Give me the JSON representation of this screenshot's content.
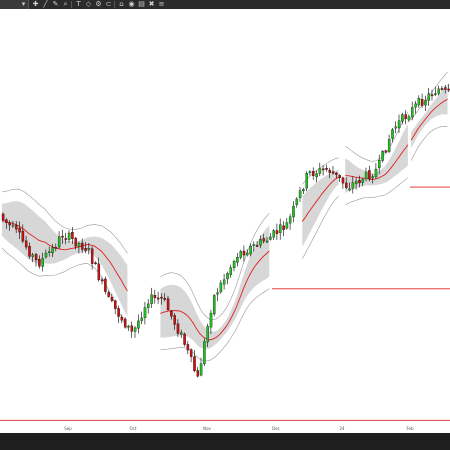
{
  "toolbar": {
    "dropdown_icon": "chevron-down-icon",
    "icons": [
      "crosshair-icon",
      "line-tool-icon",
      "pencil-icon",
      "zoom-icon",
      "text-icon",
      "shapes-icon",
      "settings-icon",
      "magnet-icon",
      "lock-icon",
      "eye-icon",
      "layers-icon",
      "trash-icon",
      "properties-icon"
    ]
  },
  "chart_data": {
    "type": "candlestick",
    "overlays": [
      "moving-average",
      "bands"
    ],
    "colors": {
      "up": "#22c022",
      "down": "#cc1111",
      "ma": "#e0201e",
      "band_fill": "#d7d7d7",
      "band_line": "#999999",
      "hline": "#e0201e"
    },
    "x_tick_labels": [
      "Sep",
      "Oct",
      "Nov",
      "Dec",
      "24",
      "Feb"
    ],
    "horizontal_lines": [
      0.42,
      0.66,
      0.97
    ],
    "grid": false,
    "legend": "none"
  }
}
